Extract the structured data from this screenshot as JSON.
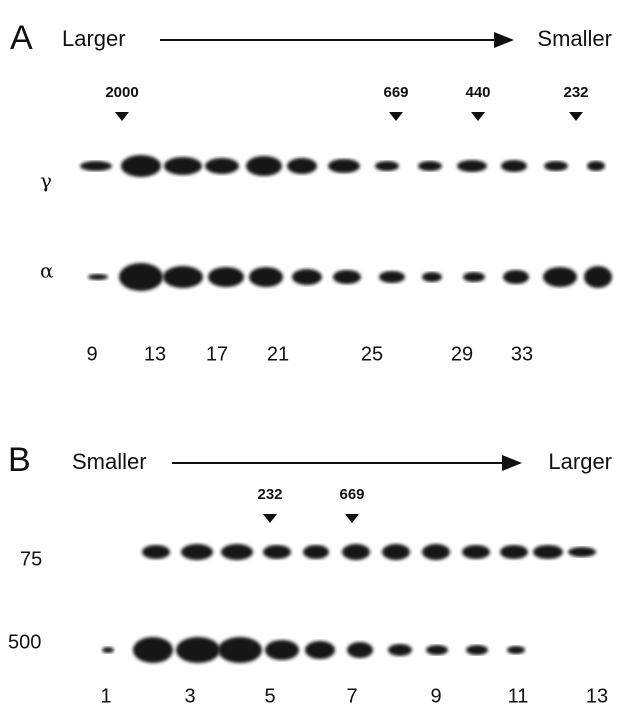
{
  "panel_a": {
    "label": "A",
    "left": "Larger",
    "right": "Smaller",
    "markers": [
      "2000",
      "669",
      "440",
      "232"
    ],
    "rows": [
      "γ",
      "α"
    ],
    "lanes": [
      "9",
      "13",
      "17",
      "21",
      "25",
      "29",
      "33"
    ]
  },
  "panel_b": {
    "label": "B",
    "left": "Smaller",
    "right": "Larger",
    "markers": [
      "232",
      "669"
    ],
    "rows": [
      "75",
      "500"
    ],
    "lanes": [
      "1",
      "3",
      "5",
      "7",
      "9",
      "11",
      "13"
    ]
  }
}
